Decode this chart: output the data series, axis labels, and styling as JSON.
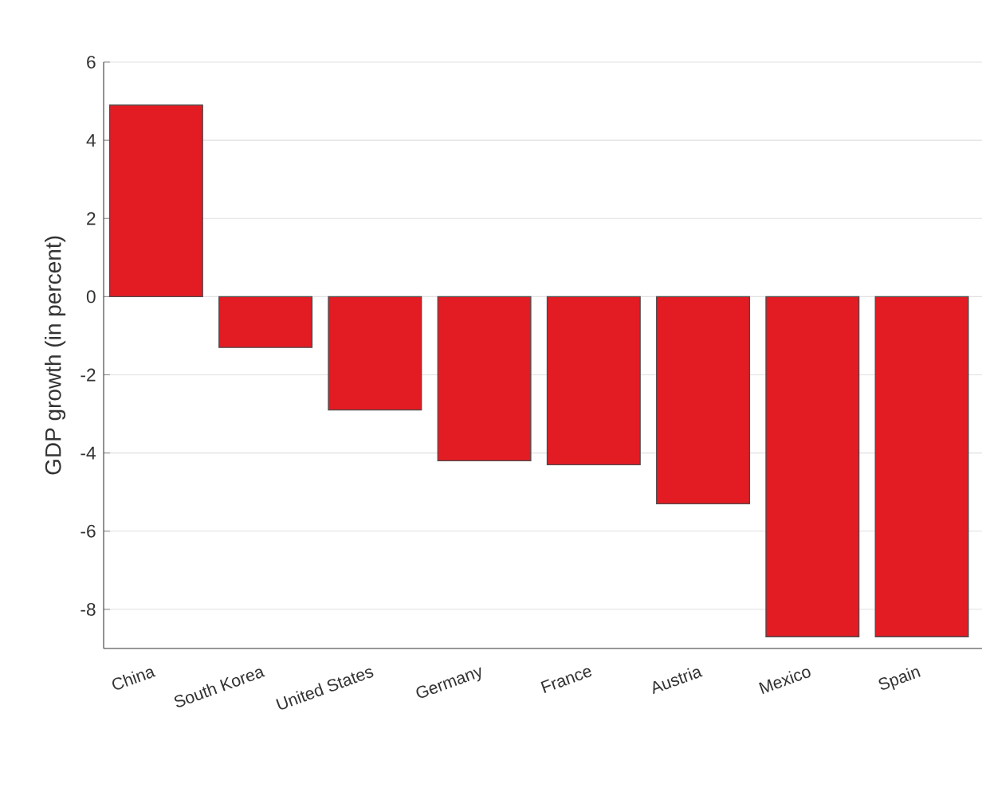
{
  "chart_data": {
    "type": "bar",
    "ylabel": "GDP growth (in percent)",
    "categories": [
      "China",
      "South Korea",
      "United States",
      "Germany",
      "France",
      "Austria",
      "Mexico",
      "Spain"
    ],
    "values": [
      4.9,
      -1.3,
      -2.9,
      -4.2,
      -4.3,
      -5.3,
      -8.7,
      -8.7
    ],
    "color": "#e31b23",
    "ylim": [
      -9,
      6
    ],
    "yticks": [
      -8,
      -6,
      -4,
      -2,
      0,
      2,
      4,
      6
    ],
    "grid": "y"
  }
}
